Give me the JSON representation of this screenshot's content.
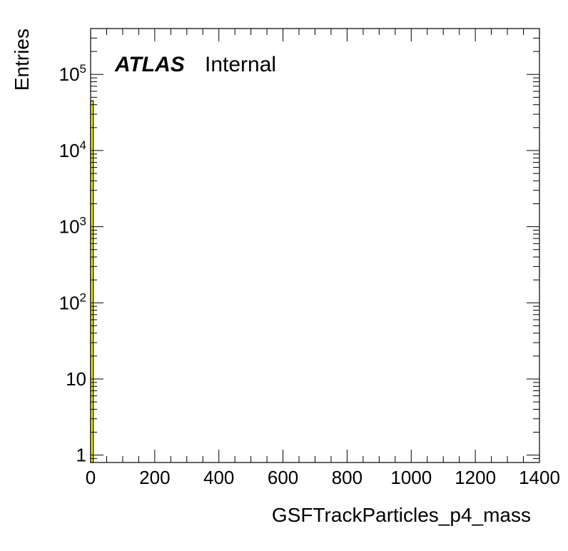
{
  "chart_data": {
    "type": "bar",
    "xlabel": "GSFTrackParticles_p4_mass",
    "ylabel": "Entries",
    "xlim": [
      0,
      1400
    ],
    "ylim": [
      0.8,
      400000
    ],
    "yscale": "log",
    "x_ticks": [
      0,
      200,
      400,
      600,
      800,
      1000,
      1200,
      1400
    ],
    "y_ticks": [
      {
        "value": 1,
        "base": "1",
        "exp": ""
      },
      {
        "value": 10,
        "base": "10",
        "exp": ""
      },
      {
        "value": 100,
        "base": "10",
        "exp": "2"
      },
      {
        "value": 1000,
        "base": "10",
        "exp": "3"
      },
      {
        "value": 10000,
        "base": "10",
        "exp": "4"
      },
      {
        "value": 100000,
        "base": "10",
        "exp": "5"
      }
    ],
    "bins": [
      {
        "x_low": 0,
        "x_high": 8,
        "value": 45000
      }
    ],
    "fill_color": "#ffff00",
    "line_color": "#000000",
    "grid": false,
    "annotations": {
      "experiment": "ATLAS",
      "status": "Internal"
    }
  }
}
